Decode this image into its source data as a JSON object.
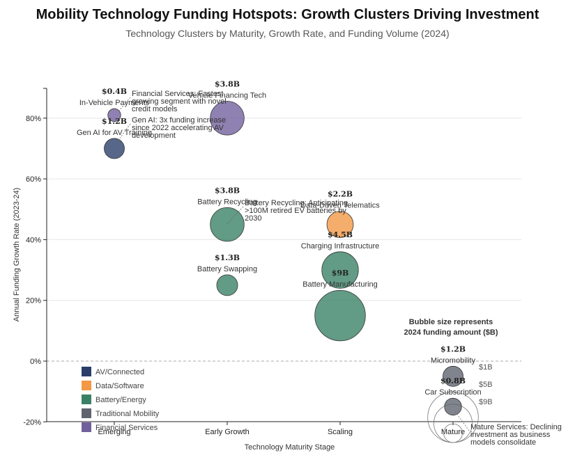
{
  "chart_data": {
    "type": "scatter",
    "title": "Mobility Technology Funding Hotspots: Growth Clusters Driving Investment",
    "subtitle": "Technology Clusters by Maturity, Growth Rate, and Funding Volume (2024)",
    "xlabel": "Technology Maturity Stage",
    "ylabel": "Annual Funding Growth Rate (2023-24)",
    "x_categories": [
      "Emerging",
      "Early Growth",
      "Scaling",
      "Mature"
    ],
    "y_ticks": [
      "-20%",
      "0%",
      "20%",
      "40%",
      "60%",
      "80%"
    ],
    "ylim": [
      -20,
      90
    ],
    "grid": true,
    "points": [
      {
        "name": "Gen AI for AV Training",
        "x": "Emerging",
        "y": 70,
        "funding": 1.2,
        "value_label": "$1.2B",
        "category": "AV/Connected"
      },
      {
        "name": "In-Vehicle Payments",
        "x": "Emerging",
        "y": 81,
        "funding": 0.4,
        "value_label": "$0.4B",
        "category": "Financial Services"
      },
      {
        "name": "Vehicle Financing Tech",
        "x": "Early Growth",
        "y": 80,
        "funding": 3.8,
        "value_label": "$3.8B",
        "category": "Financial Services"
      },
      {
        "name": "Battery Recycling",
        "x": "Early Growth",
        "y": 45,
        "funding": 3.8,
        "value_label": "$3.8B",
        "category": "Battery/Energy"
      },
      {
        "name": "Battery Swapping",
        "x": "Early Growth",
        "y": 25,
        "funding": 1.3,
        "value_label": "$1.3B",
        "category": "Battery/Energy"
      },
      {
        "name": "Data-Driven Telematics",
        "x": "Scaling",
        "y": 45,
        "funding": 2.2,
        "value_label": "$2.2B",
        "category": "Data/Software"
      },
      {
        "name": "Charging Infrastructure",
        "x": "Scaling",
        "y": 30,
        "funding": 4.5,
        "value_label": "$4.5B",
        "category": "Battery/Energy"
      },
      {
        "name": "Battery Manufacturing",
        "x": "Scaling",
        "y": 15,
        "funding": 9,
        "value_label": "$9B",
        "category": "Battery/Energy"
      },
      {
        "name": "Micromobility",
        "x": "Mature",
        "y": -5,
        "funding": 1.2,
        "value_label": "$1.2B",
        "category": "Traditional Mobility"
      },
      {
        "name": "Car Subscription",
        "x": "Mature",
        "y": -15,
        "funding": 0.8,
        "value_label": "$0.8B",
        "category": "Traditional Mobility"
      }
    ],
    "annotations": [
      {
        "text": [
          "Financial Services: Fastest",
          "growing segment with novel",
          "credit models"
        ],
        "target": "In-Vehicle Payments"
      },
      {
        "text": [
          "Gen AI: 3x funding increase",
          "since 2022 accelerating AV",
          "development"
        ],
        "target": "Gen AI for AV Training"
      },
      {
        "text": [
          "Battery Recycling: Anticipating",
          ">100M retired EV batteries by",
          "2030"
        ],
        "target": "Battery Recycling"
      },
      {
        "text": [
          "Mature Services: Declining",
          "investment as business",
          "models consolidate"
        ],
        "target": "Car Subscription"
      }
    ],
    "size_note": [
      "Bubble size represents",
      "2024 funding amount ($B)"
    ],
    "size_legend": [
      {
        "label": "$1B",
        "value": 1
      },
      {
        "label": "$5B",
        "value": 5
      },
      {
        "label": "$9B",
        "value": 9
      }
    ],
    "legend": {
      "position": "bottom-left",
      "items": [
        {
          "label": "AV/Connected",
          "color": "#1f3461"
        },
        {
          "label": "Data/Software",
          "color": "#f2923a"
        },
        {
          "label": "Battery/Energy",
          "color": "#2e7a5e"
        },
        {
          "label": "Traditional Mobility",
          "color": "#555b66"
        },
        {
          "label": "Financial Services",
          "color": "#6a5797"
        }
      ]
    }
  }
}
